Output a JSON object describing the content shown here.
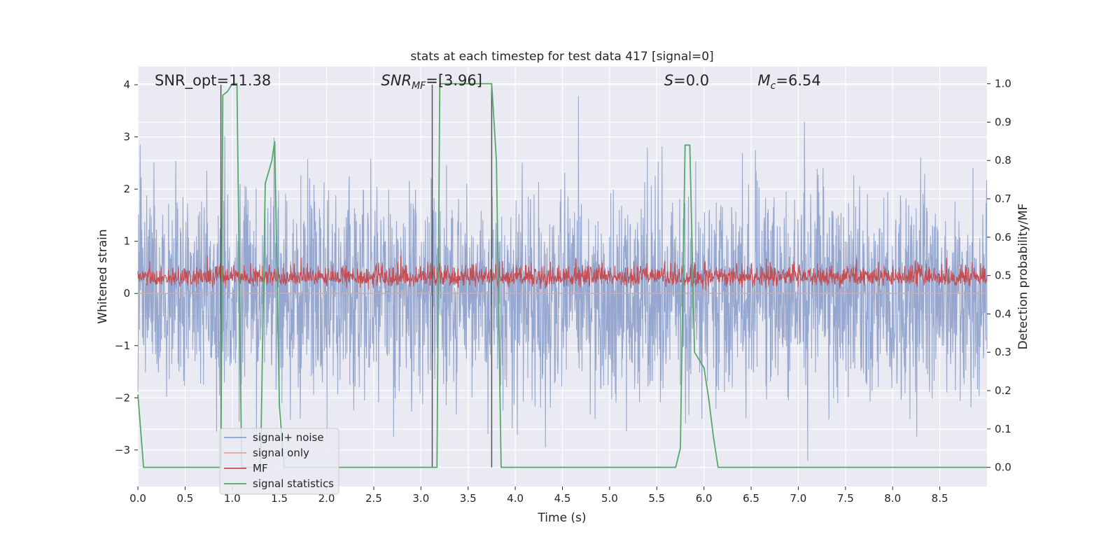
{
  "chart_data": {
    "type": "line",
    "title": "stats at each timestep for test data 417 [signal=0]",
    "xlabel": "Time (s)",
    "ylabel": "Whitened strain",
    "ylabel_right": "Detection probability/MF",
    "xlim": [
      0.0,
      9.0
    ],
    "ylim_left": [
      -3.7,
      4.35
    ],
    "ylim_right": [
      -0.05,
      1.045
    ],
    "xticks": [
      "0.0",
      "0.5",
      "1.0",
      "1.5",
      "2.0",
      "2.5",
      "3.0",
      "3.5",
      "4.0",
      "4.5",
      "5.0",
      "5.5",
      "6.0",
      "6.5",
      "7.0",
      "7.5",
      "8.0",
      "8.5"
    ],
    "yticks_left": [
      "−3",
      "−2",
      "−1",
      "0",
      "1",
      "2",
      "3",
      "4"
    ],
    "yticks_right": [
      "0.0",
      "0.1",
      "0.2",
      "0.3",
      "0.4",
      "0.5",
      "0.6",
      "0.7",
      "0.8",
      "0.9",
      "1.0"
    ],
    "annotations": [
      {
        "text": "SNR_opt=11.38",
        "x": 0.2,
        "y": 4.0
      },
      {
        "text": "SNR_MF=[3.96]",
        "x": 2.6,
        "y": 4.0
      },
      {
        "text": "S=0.0",
        "x": 5.6,
        "y": 4.0
      },
      {
        "text": "M_c=6.54",
        "x": 6.6,
        "y": 4.0
      }
    ],
    "vlines": [
      0.88,
      3.12,
      3.75
    ],
    "series": [
      {
        "name": "signal+ noise",
        "color": "#8da0cb",
        "axis": "left",
        "amplitude_std": 1.0,
        "range": [
          -3.3,
          4.0
        ]
      },
      {
        "name": "signal only",
        "color": "#e8a48c",
        "axis": "left",
        "values_const": 0.0
      },
      {
        "name": "MF",
        "color": "#c44e52",
        "axis": "left",
        "baseline": 0.3,
        "range": [
          0.0,
          1.0
        ]
      },
      {
        "name": "signal statistics",
        "color": "#55a868",
        "axis": "right",
        "x": [
          0.0,
          0.06,
          0.12,
          0.88,
          0.9,
          0.95,
          1.0,
          1.05,
          1.1,
          1.3,
          1.35,
          1.42,
          1.45,
          1.5,
          1.55,
          3.12,
          3.17,
          3.2,
          3.72,
          3.75,
          3.8,
          3.85,
          3.9,
          5.65,
          5.7,
          5.75,
          5.8,
          5.85,
          5.9,
          5.95,
          6.0,
          6.05,
          6.1,
          6.15,
          9.0
        ],
        "y": [
          0.19,
          0.0,
          0.0,
          0.0,
          0.97,
          0.98,
          1.0,
          1.0,
          0.0,
          0.0,
          0.74,
          0.8,
          0.85,
          0.16,
          0.0,
          0.0,
          0.0,
          1.0,
          1.0,
          1.0,
          0.8,
          0.0,
          0.0,
          0.0,
          0.0,
          0.05,
          0.84,
          0.84,
          0.3,
          0.28,
          0.26,
          0.18,
          0.08,
          0.0,
          0.0
        ]
      }
    ],
    "legend": {
      "placement": "lower-left",
      "entries": [
        "signal+ noise",
        "signal only",
        "MF",
        "signal statistics"
      ]
    },
    "grid": true
  }
}
